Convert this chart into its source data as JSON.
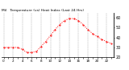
{
  "title": "Mil   Temperature (vs) Heat Index (Last 24 Hrs)",
  "line_color": "#ff0000",
  "bg_color": "#ffffff",
  "grid_color": "#999999",
  "x_values": [
    0,
    1,
    2,
    3,
    4,
    5,
    6,
    7,
    8,
    9,
    10,
    11,
    12,
    13,
    14,
    15,
    16,
    17,
    18,
    19,
    20,
    21,
    22,
    23
  ],
  "y_temp": [
    30,
    30,
    30,
    30,
    28,
    25,
    25,
    26,
    31,
    36,
    42,
    48,
    53,
    57,
    59,
    59,
    57,
    53,
    48,
    44,
    41,
    38,
    36,
    34
  ],
  "ylim": [
    20,
    65
  ],
  "ytick_values": [
    20,
    30,
    40,
    50,
    60
  ],
  "title_fontsize": 3.2,
  "ylabel_fontsize": 3.5,
  "xlabel_fontsize": 3.0,
  "linewidth": 0.7,
  "markersize": 1.0
}
